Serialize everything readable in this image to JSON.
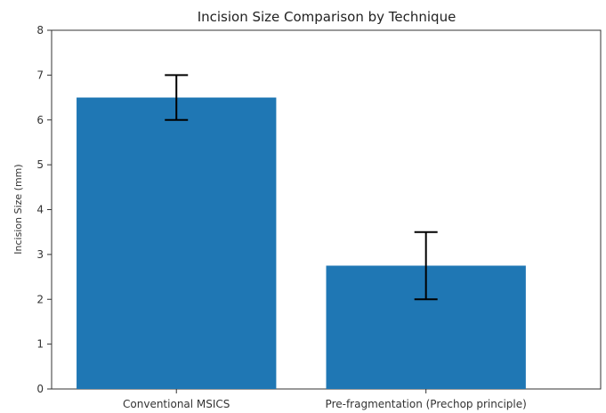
{
  "chart_data": {
    "type": "bar",
    "title": "Incision Size Comparison by Technique",
    "xlabel": "",
    "ylabel": "Incision Size (mm)",
    "categories": [
      "Conventional MSICS",
      "Pre-fragmentation (Prechop principle)"
    ],
    "values": [
      6.5,
      2.75
    ],
    "error_bars": [
      {
        "low": 6.0,
        "high": 7.0
      },
      {
        "low": 2.0,
        "high": 3.5
      }
    ],
    "ylim": [
      0,
      8
    ],
    "yticks": [
      "0",
      "1",
      "2",
      "3",
      "4",
      "5",
      "6",
      "7",
      "8"
    ],
    "grid": false,
    "bar_color": "#1f77b4",
    "errorbar_color": "#000000"
  }
}
